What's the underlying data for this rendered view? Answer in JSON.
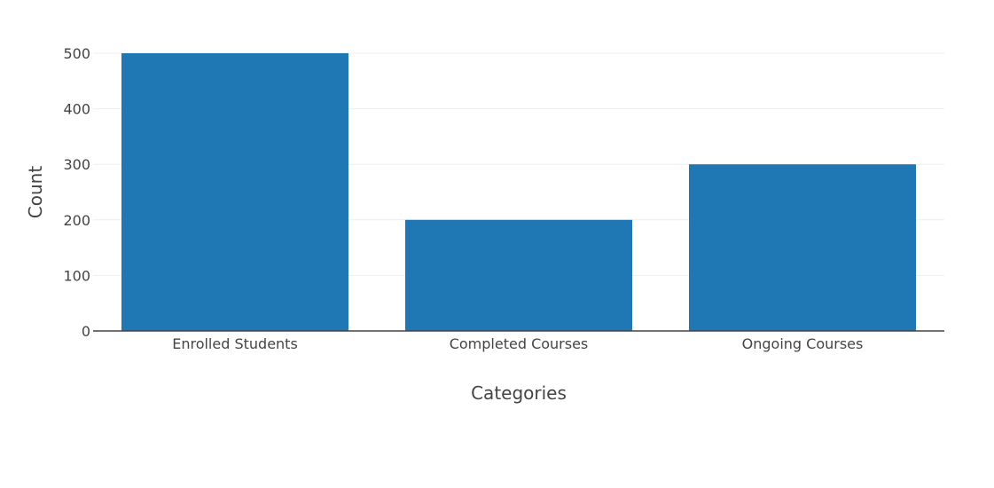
{
  "chart_data": {
    "type": "bar",
    "title": "",
    "categories": [
      "Enrolled Students",
      "Completed Courses",
      "Ongoing Courses"
    ],
    "values": [
      500,
      200,
      300
    ],
    "xlabel": "Categories",
    "ylabel": "Count",
    "ylim": [
      0,
      500
    ],
    "yticks": [
      0,
      100,
      200,
      300,
      400,
      500
    ],
    "grid": true,
    "legend": "none",
    "bar_color": "#1f77b4",
    "grid_color": "#eeeeee",
    "axis_color": "#444444"
  }
}
